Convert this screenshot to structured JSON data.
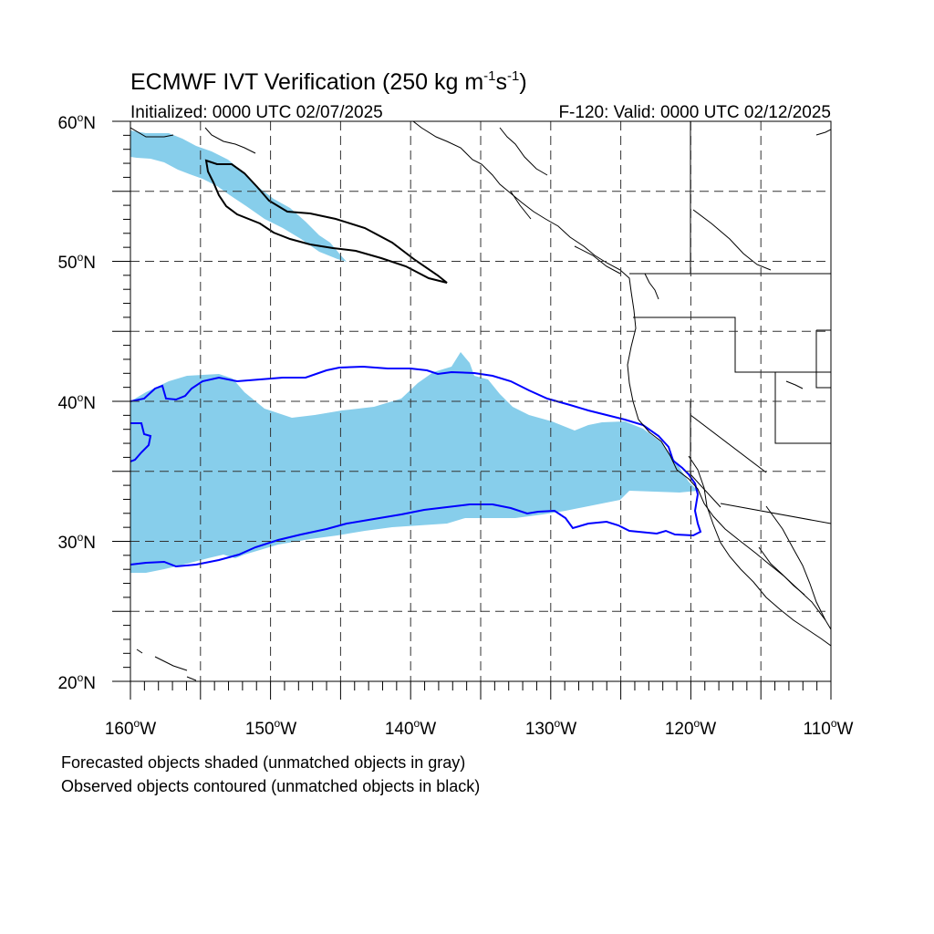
{
  "title": {
    "main": "ECMWF IVT Verification (250 kg m",
    "exp1": "-1",
    "mid": "s",
    "exp2": "-1",
    "close": ")"
  },
  "subtitle": {
    "initialized": "Initialized: 0000 UTC 02/07/2025",
    "valid": "F-120: Valid: 0000 UTC 02/12/2025"
  },
  "axes": {
    "lon_range": [
      -160,
      -110
    ],
    "lat_range": [
      20,
      60
    ],
    "lat_labels": [
      "60",
      "50",
      "40",
      "30",
      "20"
    ],
    "lon_labels": [
      "160",
      "150",
      "140",
      "130",
      "120",
      "110"
    ],
    "lat_suffix": "N",
    "lon_suffix": "W",
    "degree_symbol": "o",
    "grid": "dashed every 5 degrees"
  },
  "legend": {
    "line1": "Forecasted objects shaded (unmatched objects in gray)",
    "line2": "Observed objects contoured (unmatched objects in black)"
  },
  "colors": {
    "forecast_fill": "#87ceeb",
    "matched_contour": "#0000ff",
    "unmatched_contour": "#000000",
    "coastline": "#000000",
    "grid": "#333333"
  },
  "objects": [
    {
      "kind": "forecast",
      "matched": true,
      "lon_span": [
        -160,
        -119
      ],
      "lat_span": [
        28,
        43
      ]
    },
    {
      "kind": "forecast",
      "matched": true,
      "lon_span": [
        -160,
        -145
      ],
      "lat_span": [
        50,
        59
      ]
    },
    {
      "kind": "observed",
      "matched": true,
      "lon_span": [
        -160,
        -119
      ],
      "lat_span": [
        28,
        42.5
      ]
    },
    {
      "kind": "observed",
      "matched": false,
      "lon_span": [
        -155,
        -137.5
      ],
      "lat_span": [
        48.5,
        57
      ]
    }
  ]
}
